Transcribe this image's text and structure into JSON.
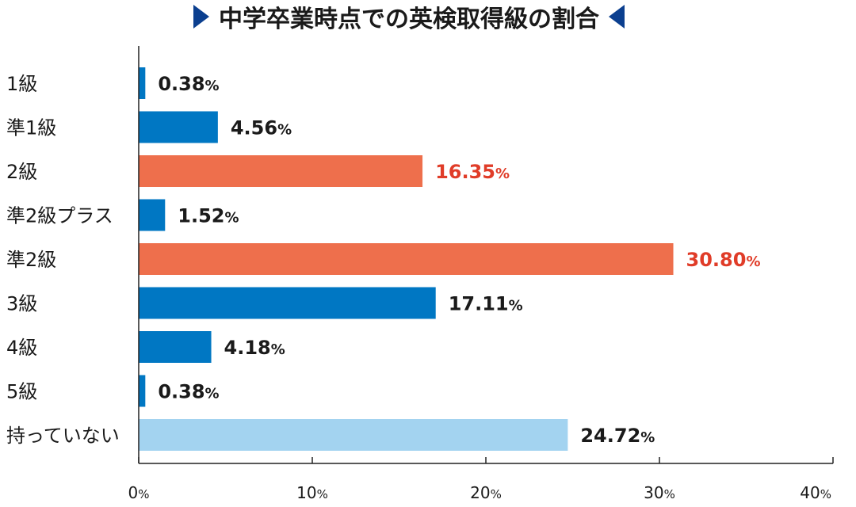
{
  "chart_data": {
    "type": "bar",
    "orientation": "horizontal",
    "title": "中学卒業時点での英検取得級の割合",
    "categories": [
      "1級",
      "準1級",
      "2級",
      "準2級プラス",
      "準2級",
      "3級",
      "4級",
      "5級",
      "持っていない"
    ],
    "values": [
      0.38,
      4.56,
      16.35,
      1.52,
      30.8,
      17.11,
      4.18,
      0.38,
      24.72
    ],
    "value_labels": [
      "0.38",
      "4.56",
      "16.35",
      "1.52",
      "30.80",
      "17.11",
      "4.18",
      "0.38",
      "24.72"
    ],
    "unit": "%",
    "xlim": [
      0,
      40
    ],
    "xticks": [
      0,
      10,
      20,
      30,
      40
    ],
    "xtick_labels": [
      "0",
      "10",
      "20",
      "30",
      "40"
    ],
    "xlabel": "",
    "ylabel": "",
    "grid": false,
    "legend": "none",
    "bar_colors": [
      "#0077c3",
      "#0077c3",
      "#ee6f4c",
      "#0077c3",
      "#ee6f4c",
      "#0077c3",
      "#0077c3",
      "#0077c3",
      "#a3d3f0"
    ],
    "value_label_colors": [
      "#1a1a1a",
      "#1a1a1a",
      "#e03c28",
      "#1a1a1a",
      "#e03c28",
      "#1a1a1a",
      "#1a1a1a",
      "#1a1a1a",
      "#1a1a1a"
    ],
    "title_marker_color": "#0b3f8f",
    "axis_color": "#222222"
  }
}
